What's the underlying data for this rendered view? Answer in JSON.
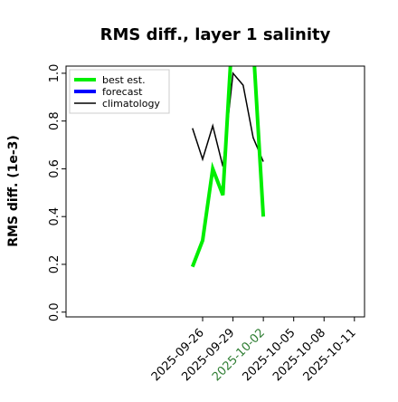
{
  "chart_data": {
    "type": "line",
    "title": "RMS diff., layer 1 salinity",
    "xlabel": "",
    "ylabel": "RMS diff. (1e-3)",
    "ylim": [
      -0.02,
      1.03
    ],
    "yticks": [
      0.0,
      0.2,
      0.4,
      0.6,
      0.8,
      1.0
    ],
    "ytick_labels": [
      "0.0",
      "0.2",
      "0.4",
      "0.6",
      "0.8",
      "1.0"
    ],
    "xlim_days": [
      -12.5,
      17.0
    ],
    "x_ticks": [
      {
        "day": 1,
        "label": "2025-09-26",
        "color": "#000000"
      },
      {
        "day": 4,
        "label": "2025-09-29",
        "color": "#000000"
      },
      {
        "day": 7,
        "label": "2025-10-02",
        "color": "#2e7d32"
      },
      {
        "day": 10,
        "label": "2025-10-05",
        "color": "#000000"
      },
      {
        "day": 13,
        "label": "2025-10-08",
        "color": "#000000"
      },
      {
        "day": 16,
        "label": "2025-10-11",
        "color": "#000000"
      }
    ],
    "legend_position": "upper left",
    "grid": false,
    "series": [
      {
        "name": "best est.",
        "color": "#00ee00",
        "linewidth": 4,
        "x": [
          0,
          1,
          2,
          3,
          4,
          5,
          6,
          7
        ],
        "y": [
          0.19,
          0.3,
          0.6,
          0.49,
          1.22,
          1.35,
          1.12,
          0.4
        ]
      },
      {
        "name": "forecast",
        "color": "#0000ff",
        "linewidth": 4,
        "x": [],
        "y": []
      },
      {
        "name": "climatology",
        "color": "#000000",
        "linewidth": 1.5,
        "x": [
          0,
          1,
          2,
          3,
          4,
          5,
          6,
          7
        ],
        "y": [
          0.77,
          0.64,
          0.78,
          0.61,
          1.0,
          0.95,
          0.73,
          0.63
        ]
      }
    ]
  }
}
